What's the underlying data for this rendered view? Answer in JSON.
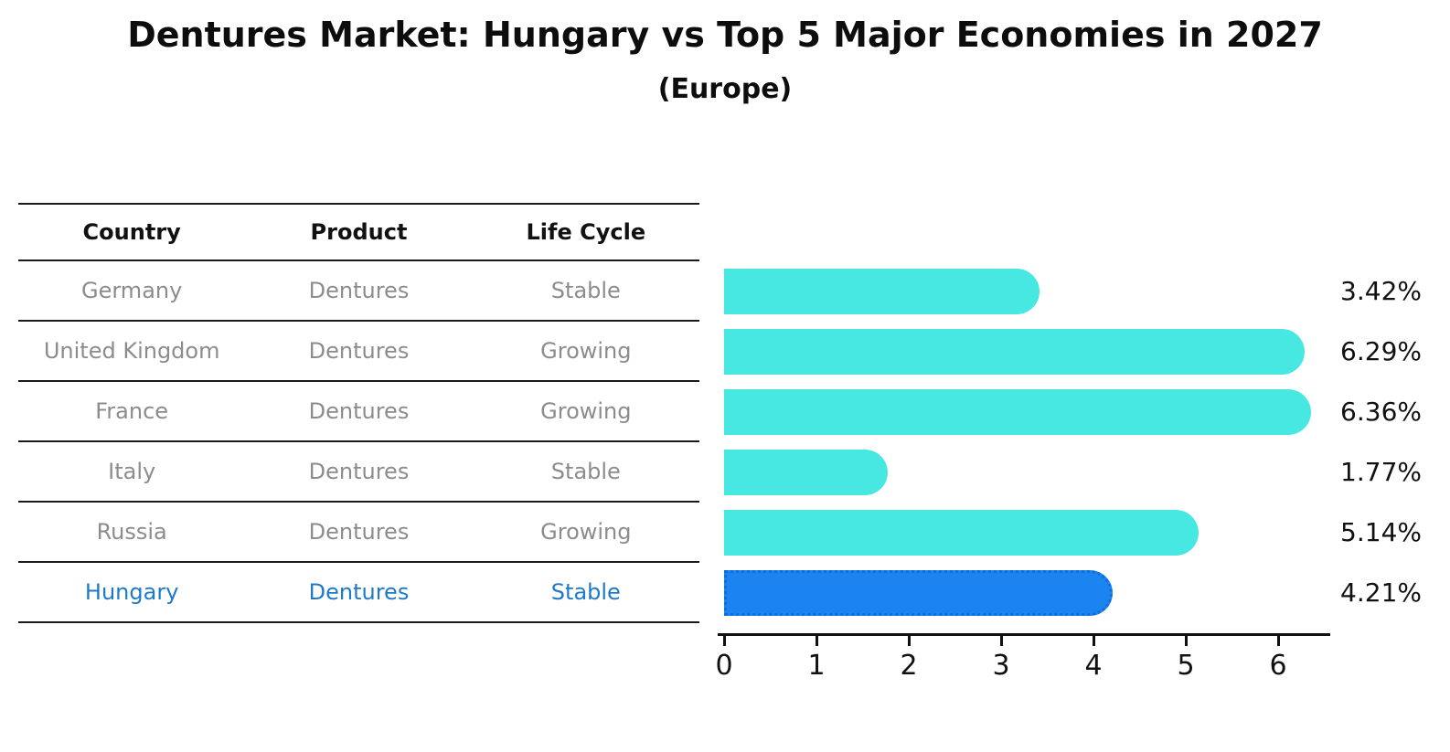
{
  "title": "Dentures Market: Hungary vs Top 5 Major Economies in 2027",
  "subtitle": "(Europe)",
  "table": {
    "headers": [
      "Country",
      "Product",
      "Life Cycle"
    ],
    "rows": [
      {
        "country": "Germany",
        "product": "Dentures",
        "life_cycle": "Stable",
        "highlight": false
      },
      {
        "country": "United Kingdom",
        "product": "Dentures",
        "life_cycle": "Growing",
        "highlight": false
      },
      {
        "country": "France",
        "product": "Dentures",
        "life_cycle": "Growing",
        "highlight": false
      },
      {
        "country": "Italy",
        "product": "Dentures",
        "life_cycle": "Stable",
        "highlight": false
      },
      {
        "country": "Russia",
        "product": "Dentures",
        "life_cycle": "Growing",
        "highlight": false
      },
      {
        "country": "Hungary",
        "product": "Dentures",
        "life_cycle": "Stable",
        "highlight": true
      }
    ]
  },
  "chart_data": {
    "type": "bar",
    "orientation": "horizontal",
    "title": "Dentures Market: Hungary vs Top 5 Major Economies in 2027",
    "subtitle": "(Europe)",
    "categories": [
      "Germany",
      "United Kingdom",
      "France",
      "Italy",
      "Russia",
      "Hungary"
    ],
    "values": [
      3.42,
      6.29,
      6.36,
      1.77,
      5.14,
      4.21
    ],
    "value_labels": [
      "3.42%",
      "6.29%",
      "6.36%",
      "1.77%",
      "5.14%",
      "4.21%"
    ],
    "x_ticks": [
      0,
      1,
      2,
      3,
      4,
      5,
      6
    ],
    "xlim": [
      0,
      6.6
    ],
    "grid": false,
    "legend": "none",
    "bar_color": "#46e8e1",
    "highlight_bar_color": "#1c84f0",
    "highlight_index": 5
  },
  "colors": {
    "title_text": "#0d0d0d",
    "header_text": "#111111",
    "row_text": "#8c8c8c",
    "highlight_text": "#1e7ac9",
    "axis": "#111111"
  }
}
